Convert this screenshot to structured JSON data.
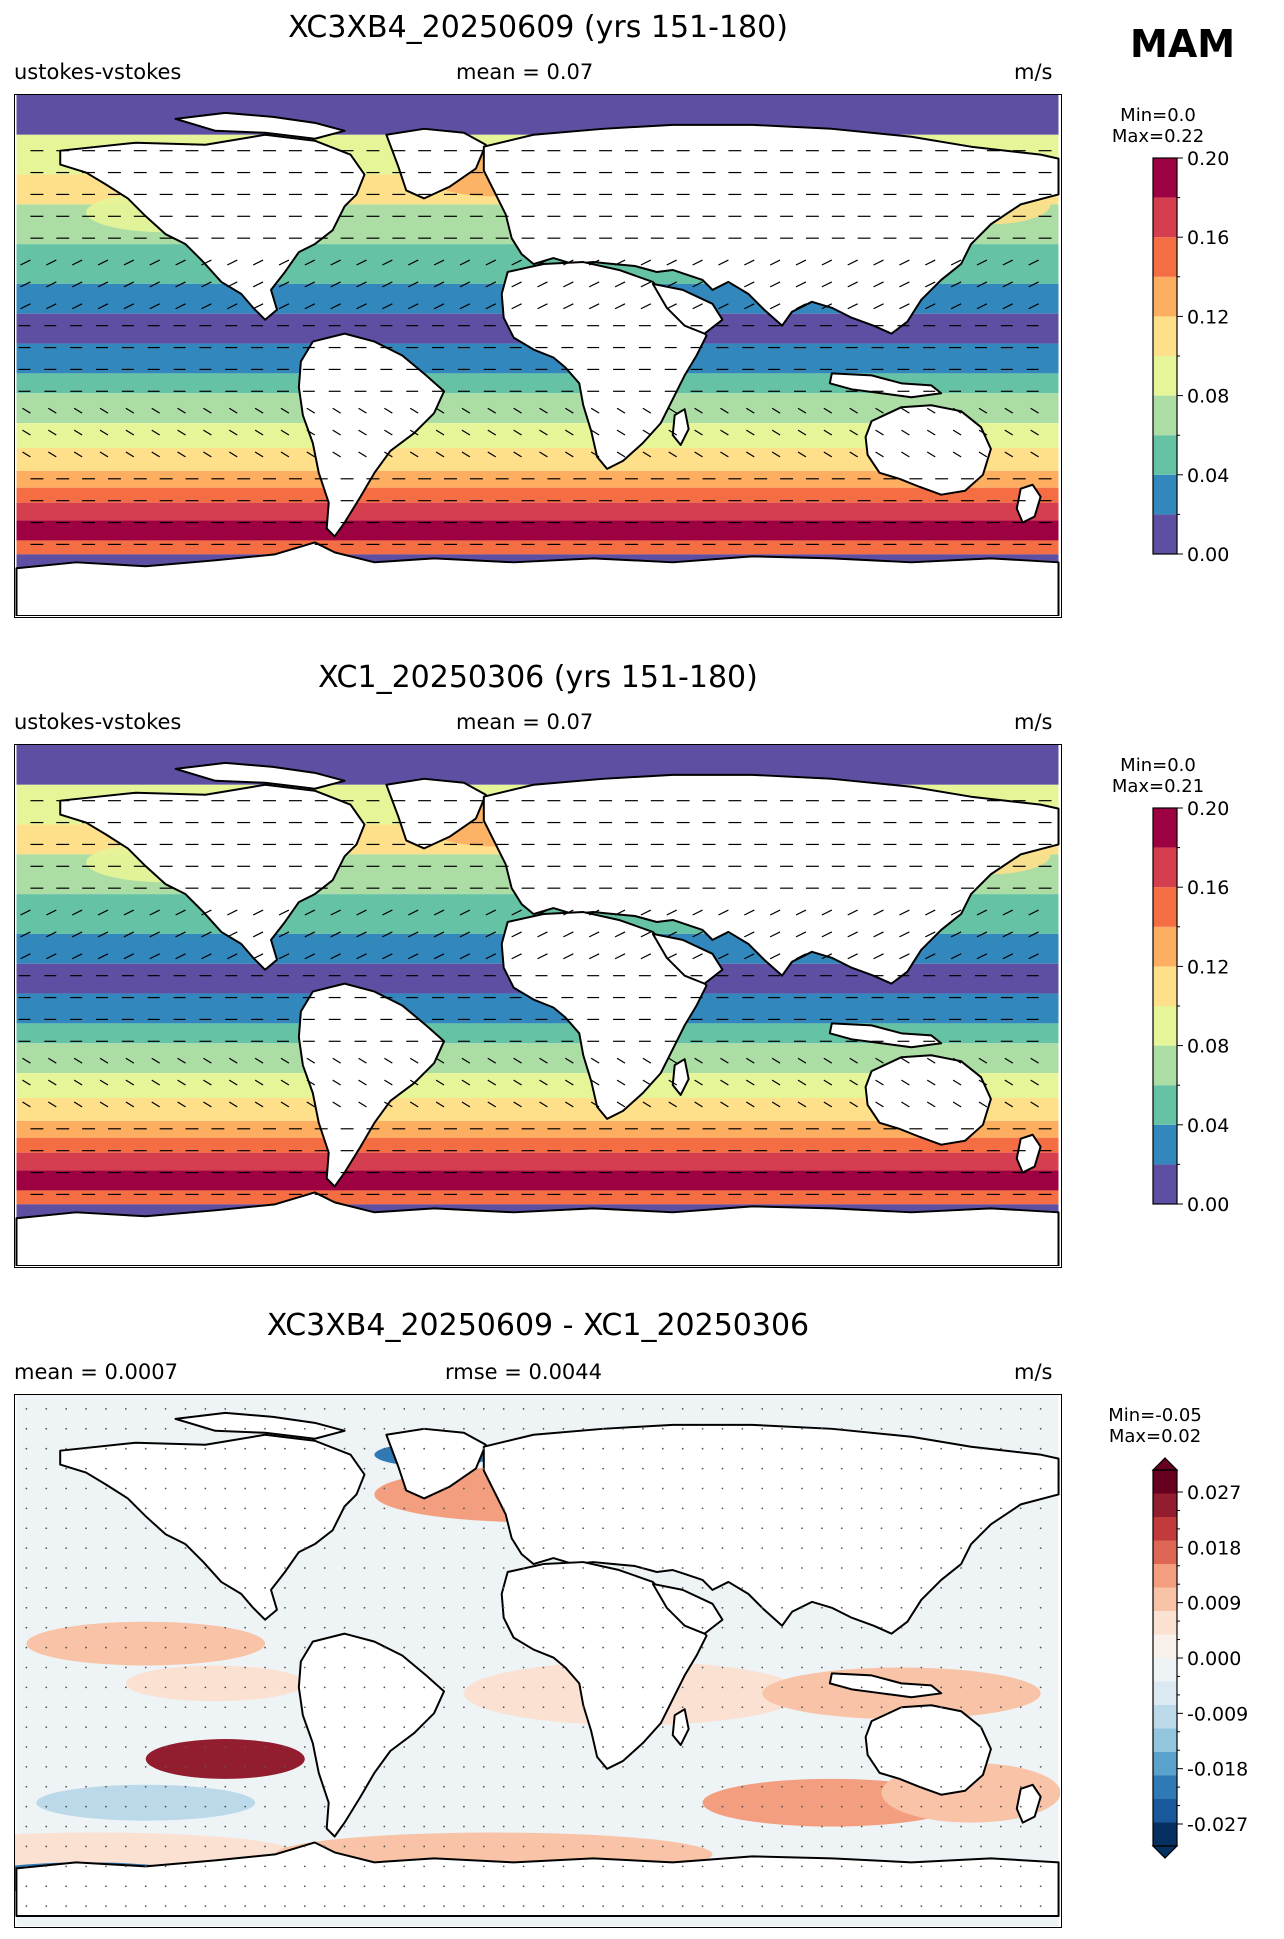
{
  "season": "MAM",
  "panels": [
    {
      "id": "test",
      "title": "XC3XB4_20250609 (yrs 151-180)",
      "left_label": "ustokes-vstokes",
      "center_label": "mean = 0.07",
      "units": "m/s",
      "min_label": "Min=0.0",
      "max_label": "Max=0.22"
    },
    {
      "id": "ref",
      "title": "XC1_20250306 (yrs 151-180)",
      "left_label": "ustokes-vstokes",
      "center_label": "mean = 0.07",
      "units": "m/s",
      "min_label": "Min=0.0",
      "max_label": "Max=0.21"
    },
    {
      "id": "diff",
      "title": "XC3XB4_20250609 - XC1_20250306",
      "left_label": "mean = 0.0007",
      "center_label": "rmse = 0.0044",
      "units": "m/s",
      "min_label": "Min=-0.05",
      "max_label": "Max=0.02"
    }
  ],
  "colorbars": {
    "field": {
      "ticks": [
        "0.00",
        "0.04",
        "0.08",
        "0.12",
        "0.16",
        "0.20"
      ],
      "colors": [
        "#5e4fa2",
        "#3288bd",
        "#66c2a5",
        "#abdda4",
        "#e6f598",
        "#fee08b",
        "#fdae61",
        "#f46d43",
        "#d53e4f",
        "#9e0142"
      ]
    },
    "diff": {
      "ticks": [
        "-0.027",
        "-0.018",
        "-0.009",
        "0.000",
        "0.009",
        "0.018",
        "0.027"
      ],
      "colors": [
        "#053061",
        "#1a5a9c",
        "#2f79b5",
        "#5aa1cc",
        "#92c5de",
        "#bcd9ea",
        "#dbe9f2",
        "#eef3f6",
        "#f8f1ec",
        "#fbe1d2",
        "#f8c3a7",
        "#f29e7f",
        "#dd6654",
        "#c13b3c",
        "#921d2e",
        "#67001f"
      ]
    }
  }
}
